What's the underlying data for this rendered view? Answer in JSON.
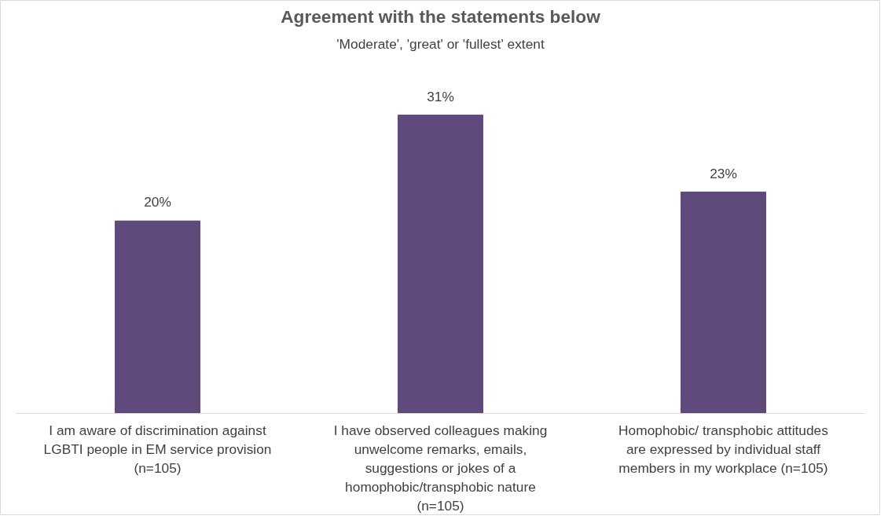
{
  "chart_data": {
    "type": "bar",
    "title": "Agreement with the statements below",
    "subtitle": "'Moderate', 'great' or 'fullest' extent",
    "categories": [
      "I am aware of discrimination against LGBTI people in EM service provision (n=105)",
      "I have observed colleagues making unwelcome remarks, emails, suggestions or jokes of a homophobic/transphobic nature (n=105)",
      "Homophobic/ transphobic attitudes are expressed by individual staff members in my workplace (n=105)"
    ],
    "values": [
      20,
      31,
      23
    ],
    "value_labels": [
      "20%",
      "31%",
      "23%"
    ],
    "color": "#604a7b",
    "grid": false,
    "tick_labels": "x"
  }
}
